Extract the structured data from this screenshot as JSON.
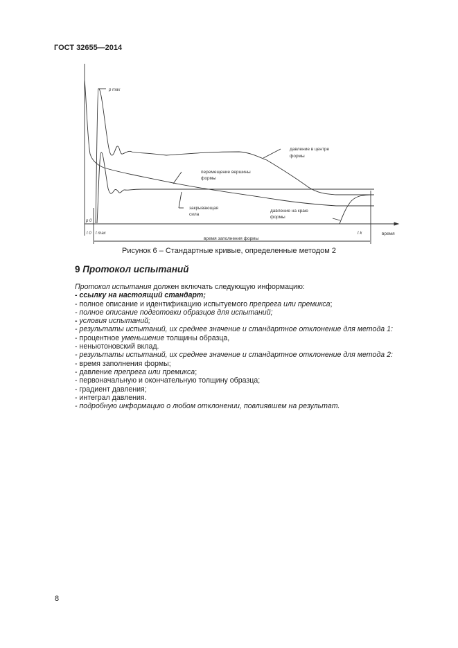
{
  "header": "ГОСТ 32655—2014",
  "figure": {
    "labels": {
      "p_max": "p max",
      "p0": "p 0",
      "t0": "t 0",
      "tmax": "t max",
      "tk": "t k",
      "time": "время",
      "fill_time": "время заполнения формы",
      "center_pressure_1": "давление в центре",
      "center_pressure_2": "формы",
      "displacement_1": "перемещение вершины",
      "displacement_2": "формы",
      "closing_force_1": "закрывающая",
      "closing_force_2": "сила",
      "edge_pressure_1": "давление на краю",
      "edge_pressure_2": "формы"
    },
    "caption": "Рисунок 6 – Стандартные кривые, определенные методом 2"
  },
  "section": {
    "number": "9",
    "title": "Протокол испытаний"
  },
  "lines": [
    [
      {
        "t": "Протокол испытания",
        "s": "it"
      },
      {
        "t": " должен включать следующую информацию:",
        "s": ""
      }
    ],
    [
      {
        "t": "- ссылку на настоящий стандарт;",
        "s": "bi"
      }
    ],
    [
      {
        "t": "- полное описание и идентификацию испытуемого ",
        "s": ""
      },
      {
        "t": "препрега или премикса",
        "s": "it"
      },
      {
        "t": ";",
        "s": ""
      }
    ],
    [
      {
        "t": "- полное описание подготовки образцов для испытаний;",
        "s": "it"
      }
    ],
    [
      {
        "t": "- ",
        "s": "b"
      },
      {
        "t": "условия испытаний;",
        "s": "it"
      }
    ],
    [
      {
        "t": "- результаты испытаний, их среднее значение и стандартное отклонение для метода 1:",
        "s": "it"
      }
    ],
    [
      {
        "t": "- процентное ",
        "s": ""
      },
      {
        "t": "уменьшение",
        "s": "it"
      },
      {
        "t": " толщины образца,",
        "s": ""
      }
    ],
    [
      {
        "t": "- неньютоновский вклад.",
        "s": ""
      }
    ],
    [
      {
        "t": "- результаты испытаний, их среднее значение и стандартное отклонение для метода 2:",
        "s": "it"
      }
    ],
    [
      {
        "t": "- время заполнения формы;",
        "s": ""
      }
    ],
    [
      {
        "t": "- давление ",
        "s": ""
      },
      {
        "t": "препрега или премикса",
        "s": "it"
      },
      {
        "t": ";",
        "s": ""
      }
    ],
    [
      {
        "t": "- первоначальную и окончательную толщину образца;",
        "s": ""
      }
    ],
    [
      {
        "t": "- градиент давления;",
        "s": ""
      }
    ],
    [
      {
        "t": "- интеграл давления.",
        "s": ""
      }
    ],
    [
      {
        "t": "- подробную информацию о любом отклонении, повлиявшем на результат.",
        "s": "it"
      }
    ]
  ],
  "page_number": "8"
}
